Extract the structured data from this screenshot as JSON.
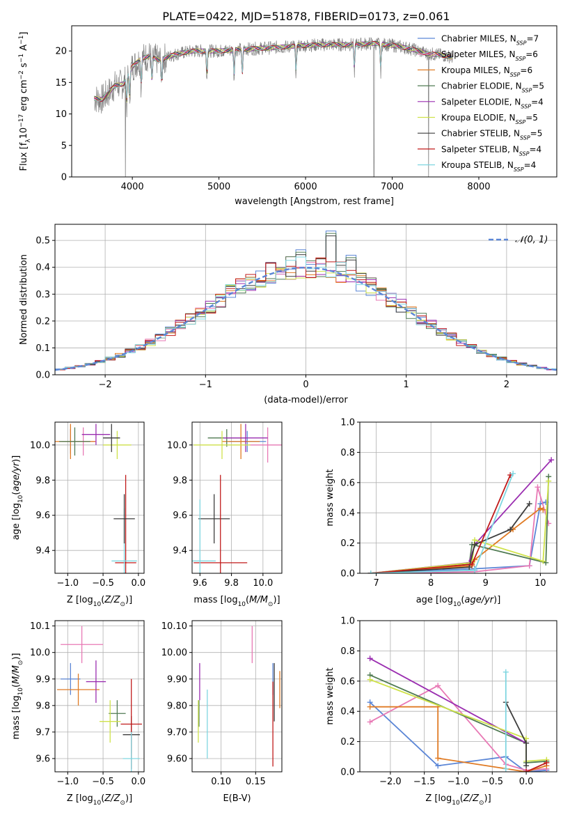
{
  "figure": {
    "title": "PLATE=0422, MJD=51878, FIBERID=0173, z=0.061"
  },
  "colors": {
    "Chabrier MILES": "#5b86d6",
    "Salpeter MILES": "#e879b5",
    "Kroupa MILES": "#e07b24",
    "Chabrier ELODIE": "#4f7a52",
    "Salpeter ELODIE": "#9a2db0",
    "Kroupa ELODIE": "#cfe24a",
    "Chabrier STELIB": "#3d3d3d",
    "Salpeter STELIB": "#c01a1a",
    "Kroupa STELIB": "#7fd6e0",
    "data": "#808080",
    "normal": "#5b86d6"
  },
  "chart_data": [
    {
      "id": "spectrum",
      "type": "line",
      "xlabel": "wavelength [Angstrom, rest frame]",
      "ylabel": "Flux [f_λ10^{-17} erg cm^{-2} s^{-1} A^{-1}]",
      "xlim": [
        3300,
        8900
      ],
      "ylim": [
        0,
        24
      ],
      "xticks": [
        4000,
        5000,
        6000,
        7000,
        8000
      ],
      "yticks": [
        0,
        5,
        10,
        15,
        20
      ],
      "grid": false,
      "legend_position": "right",
      "legend": [
        {
          "model": "Chabrier MILES",
          "nssp": "7"
        },
        {
          "model": "Salpeter MILES",
          "nssp": "6"
        },
        {
          "model": "Kroupa MILES",
          "nssp": "6"
        },
        {
          "model": "Chabrier ELODIE",
          "nssp": "5"
        },
        {
          "model": "Salpeter ELODIE",
          "nssp": "4"
        },
        {
          "model": "Kroupa ELODIE",
          "nssp": "5"
        },
        {
          "model": "Chabrier STELIB",
          "nssp": "5"
        },
        {
          "model": "Salpeter STELIB",
          "nssp": "4"
        },
        {
          "model": "Kroupa STELIB",
          "nssp": "4"
        }
      ],
      "continuum": {
        "x": [
          3550,
          3650,
          3700,
          3800,
          3900,
          4000,
          4100,
          4200,
          4300,
          4500,
          4700,
          5000,
          5300,
          5600,
          5900,
          6200,
          6500,
          6800,
          7000,
          7200,
          7400,
          7600,
          7700
        ],
        "y": [
          12.5,
          12.3,
          13.0,
          14.5,
          14.8,
          17.5,
          18.8,
          19.2,
          18.5,
          19.5,
          20.0,
          20.0,
          20.3,
          20.5,
          20.8,
          21.0,
          21.0,
          21.2,
          20.9,
          20.4,
          19.6,
          19.3,
          19.0
        ]
      },
      "absorption_lines": [
        3934,
        3969,
        4102,
        4227,
        4340,
        4861,
        5175,
        5270,
        5890,
        6563,
        6867
      ],
      "data_dropouts": [
        3920,
        6790,
        7420
      ]
    },
    {
      "id": "residuals",
      "type": "histogram",
      "xlabel": "(data-model)/error",
      "ylabel": "Normed distribution",
      "xlim": [
        -2.5,
        2.5
      ],
      "ylim": [
        0,
        0.56
      ],
      "xticks": [
        -2,
        -1,
        0,
        1,
        2
      ],
      "yticks": [
        0.0,
        0.1,
        0.2,
        0.3,
        0.4,
        0.5
      ],
      "grid": true,
      "bin_width": 0.1,
      "legend_position": "top-right",
      "legend": [
        "𝒩(0, 1)"
      ],
      "highlights": [
        {
          "x": 0.25,
          "y": 0.535
        },
        {
          "x": -0.05,
          "y": 0.465
        },
        {
          "x": 0.45,
          "y": 0.445
        }
      ]
    },
    {
      "id": "age_vs_Z",
      "type": "errorbar",
      "xlabel": "Z [log10(Z/Z⊙)]",
      "ylabel": "age [log10(age/yr)]",
      "xlim": [
        -1.18,
        0.08
      ],
      "ylim": [
        9.27,
        10.13
      ],
      "xticks": [
        -1.0,
        -0.5,
        0.0
      ],
      "yticks": [
        9.4,
        9.6,
        9.8,
        10.0
      ],
      "grid": true,
      "points": [
        {
          "model": "Chabrier MILES",
          "x": -0.96,
          "y": 10.02,
          "xerr": 0.12,
          "yerr": 0.07
        },
        {
          "model": "Salpeter MILES",
          "x": -0.78,
          "y": 10.02,
          "xerr": 0.18,
          "yerr": 0.08
        },
        {
          "model": "Kroupa MILES",
          "x": -0.96,
          "y": 10.02,
          "xerr": 0.35,
          "yerr": 0.1
        },
        {
          "model": "Chabrier ELODIE",
          "x": -0.9,
          "y": 10.02,
          "xerr": 0.22,
          "yerr": 0.08
        },
        {
          "model": "Salpeter ELODIE",
          "x": -0.6,
          "y": 10.06,
          "xerr": 0.2,
          "yerr": 0.06
        },
        {
          "model": "Kroupa ELODIE",
          "x": -0.3,
          "y": 10.0,
          "xerr": 0.2,
          "yerr": 0.08
        },
        {
          "model": "Chabrier STELIB",
          "x": -0.38,
          "y": 10.04,
          "xerr": 0.12,
          "yerr": 0.08
        },
        {
          "model": "Salpeter STELIB",
          "x": -0.18,
          "y": 9.33,
          "xerr": 0.15,
          "yerr": 0.5
        },
        {
          "model": "Kroupa STELIB",
          "x": -0.2,
          "y": 9.34,
          "xerr": 0.18,
          "yerr": 0.3
        },
        {
          "model": "Chabrier STELIB",
          "x": -0.2,
          "y": 9.58,
          "xerr": 0.15,
          "yerr": 0.14
        }
      ]
    },
    {
      "id": "age_vs_mass",
      "type": "errorbar",
      "xlabel": "mass [log10(M/M⊙)]",
      "ylabel": "",
      "xlim": [
        9.55,
        10.12
      ],
      "ylim": [
        9.27,
        10.13
      ],
      "xticks": [
        9.6,
        9.8,
        10.0
      ],
      "yticks": [
        9.4,
        9.6,
        9.8,
        10.0
      ],
      "grid": true,
      "points": [
        {
          "model": "Chabrier MILES",
          "x": 9.9,
          "y": 10.02,
          "xerr": 0.12,
          "yerr": 0.06
        },
        {
          "model": "Salpeter MILES",
          "x": 10.03,
          "y": 10.0,
          "xerr": 0.12,
          "yerr": 0.1
        },
        {
          "model": "Kroupa MILES",
          "x": 9.86,
          "y": 10.02,
          "xerr": 0.12,
          "yerr": 0.1
        },
        {
          "model": "Chabrier ELODIE",
          "x": 9.77,
          "y": 10.04,
          "xerr": 0.12,
          "yerr": 0.05
        },
        {
          "model": "Salpeter ELODIE",
          "x": 9.89,
          "y": 10.04,
          "xerr": 0.14,
          "yerr": 0.08
        },
        {
          "model": "Kroupa ELODIE",
          "x": 9.74,
          "y": 10.0,
          "xerr": 0.18,
          "yerr": 0.08
        },
        {
          "model": "Chabrier STELIB",
          "x": 9.69,
          "y": 9.58,
          "xerr": 0.1,
          "yerr": 0.14
        },
        {
          "model": "Salpeter STELIB",
          "x": 9.73,
          "y": 9.33,
          "xerr": 0.17,
          "yerr": 0.5
        },
        {
          "model": "Kroupa STELIB",
          "x": 9.6,
          "y": 9.34,
          "xerr": 0.1,
          "yerr": 0.35
        }
      ]
    },
    {
      "id": "weight_vs_age",
      "type": "line",
      "xlabel": "age [log10(age/yr)]",
      "ylabel": "mass weight",
      "xlim": [
        6.7,
        10.3
      ],
      "ylim": [
        0,
        1.0
      ],
      "xticks": [
        7,
        8,
        9,
        10
      ],
      "yticks": [
        0.0,
        0.2,
        0.4,
        0.6,
        0.8,
        1.0
      ],
      "grid": true,
      "series": [
        {
          "model": "Chabrier MILES",
          "x": [
            6.9,
            8.8,
            9.8,
            10.0,
            10.1
          ],
          "y": [
            0.0,
            0.03,
            0.05,
            0.46,
            0.47
          ]
        },
        {
          "model": "Salpeter MILES",
          "x": [
            6.9,
            8.8,
            9.8,
            9.95,
            10.15
          ],
          "y": [
            0.0,
            0.01,
            0.05,
            0.57,
            0.33
          ]
        },
        {
          "model": "Kroupa MILES",
          "x": [
            6.9,
            8.75,
            8.8,
            9.5,
            10.0,
            10.05
          ],
          "y": [
            0.0,
            0.05,
            0.09,
            0.29,
            0.43,
            0.42
          ]
        },
        {
          "model": "Chabrier ELODIE",
          "x": [
            6.9,
            8.7,
            8.75,
            10.1,
            10.15
          ],
          "y": [
            0.0,
            0.06,
            0.19,
            0.07,
            0.64
          ]
        },
        {
          "model": "Salpeter ELODIE",
          "x": [
            6.9,
            8.7,
            8.8,
            10.2
          ],
          "y": [
            0.0,
            0.07,
            0.19,
            0.75
          ]
        },
        {
          "model": "Kroupa ELODIE",
          "x": [
            6.9,
            8.75,
            8.8,
            10.05,
            10.15
          ],
          "y": [
            0.0,
            0.07,
            0.22,
            0.08,
            0.61
          ]
        },
        {
          "model": "Chabrier STELIB",
          "x": [
            6.9,
            8.7,
            8.8,
            9.45,
            9.8
          ],
          "y": [
            0.0,
            0.04,
            0.19,
            0.29,
            0.46
          ]
        },
        {
          "model": "Salpeter STELIB",
          "x": [
            6.9,
            8.75,
            9.45
          ],
          "y": [
            0.0,
            0.06,
            0.65
          ]
        },
        {
          "model": "Kroupa STELIB",
          "x": [
            6.9,
            8.8,
            9.5
          ],
          "y": [
            0.0,
            0.02,
            0.66
          ]
        }
      ]
    },
    {
      "id": "mass_vs_Z",
      "type": "errorbar",
      "xlabel": "Z [log10(Z/Z⊙)]",
      "ylabel": "mass [log10(M/M⊙)]",
      "xlim": [
        -1.18,
        0.08
      ],
      "ylim": [
        9.55,
        10.12
      ],
      "xticks": [
        -1.0,
        -0.5,
        0.0
      ],
      "yticks": [
        9.6,
        9.7,
        9.8,
        9.9,
        10.0,
        10.1
      ],
      "grid": true,
      "points": [
        {
          "model": "Chabrier MILES",
          "x": -0.96,
          "y": 9.9,
          "xerr": 0.14,
          "yerr": 0.06
        },
        {
          "model": "Salpeter MILES",
          "x": -0.8,
          "y": 10.03,
          "xerr": 0.3,
          "yerr": 0.07
        },
        {
          "model": "Kroupa MILES",
          "x": -0.85,
          "y": 9.86,
          "xerr": 0.3,
          "yerr": 0.06
        },
        {
          "model": "Chabrier ELODIE",
          "x": -0.3,
          "y": 9.77,
          "xerr": 0.12,
          "yerr": 0.05
        },
        {
          "model": "Salpeter ELODIE",
          "x": -0.6,
          "y": 9.89,
          "xerr": 0.14,
          "yerr": 0.08
        },
        {
          "model": "Kroupa ELODIE",
          "x": -0.4,
          "y": 9.74,
          "xerr": 0.15,
          "yerr": 0.08
        },
        {
          "model": "Chabrier STELIB",
          "x": -0.1,
          "y": 9.69,
          "xerr": 0.12,
          "yerr": 0.07
        },
        {
          "model": "Salpeter STELIB",
          "x": -0.1,
          "y": 9.73,
          "xerr": 0.15,
          "yerr": 0.17
        },
        {
          "model": "Kroupa STELIB",
          "x": -0.1,
          "y": 9.6,
          "xerr": 0.12,
          "yerr": 0.1
        }
      ]
    },
    {
      "id": "mass_vs_ebv",
      "type": "errorbar",
      "xlabel": "E(B-V)",
      "ylabel": "",
      "xlim": [
        0.058,
        0.188
      ],
      "ylim": [
        9.55,
        10.12
      ],
      "xticks": [
        0.1,
        0.15
      ],
      "yticks": [
        9.6,
        9.7,
        9.8,
        9.9,
        10.0,
        10.1
      ],
      "grid": true,
      "points": [
        {
          "model": "Chabrier MILES",
          "x": 0.175,
          "y": 9.9,
          "xerr": 0.0,
          "yerr": 0.06
        },
        {
          "model": "Salpeter MILES",
          "x": 0.145,
          "y": 10.03,
          "xerr": 0.0,
          "yerr": 0.07
        },
        {
          "model": "Kroupa MILES",
          "x": 0.185,
          "y": 9.86,
          "xerr": 0.0,
          "yerr": 0.07
        },
        {
          "model": "Chabrier ELODIE",
          "x": 0.068,
          "y": 9.77,
          "xerr": 0.0,
          "yerr": 0.05
        },
        {
          "model": "Salpeter ELODIE",
          "x": 0.069,
          "y": 9.89,
          "xerr": 0.0,
          "yerr": 0.07
        },
        {
          "model": "Kroupa ELODIE",
          "x": 0.067,
          "y": 9.74,
          "xerr": 0.0,
          "yerr": 0.08
        },
        {
          "model": "Chabrier STELIB",
          "x": 0.177,
          "y": 9.85,
          "xerr": 0.0,
          "yerr": 0.11
        },
        {
          "model": "Salpeter STELIB",
          "x": 0.175,
          "y": 9.73,
          "xerr": 0.0,
          "yerr": 0.16
        },
        {
          "model": "Kroupa STELIB",
          "x": 0.08,
          "y": 9.73,
          "xerr": 0.0,
          "yerr": 0.13
        }
      ]
    },
    {
      "id": "weight_vs_Z",
      "type": "line",
      "xlabel": "Z [log10(Z/Z⊙)]",
      "ylabel": "mass weight",
      "xlim": [
        -2.45,
        0.45
      ],
      "ylim": [
        0,
        1.0
      ],
      "xticks": [
        -2.0,
        -1.5,
        -1.0,
        -0.5,
        0.0
      ],
      "yticks": [
        0.0,
        0.2,
        0.4,
        0.6,
        0.8,
        1.0
      ],
      "grid": true,
      "series": [
        {
          "model": "Chabrier MILES",
          "x": [
            -2.3,
            -1.3,
            -0.3,
            0.0,
            0.3
          ],
          "y": [
            0.46,
            0.04,
            0.1,
            0.0,
            0.01
          ]
        },
        {
          "model": "Salpeter MILES",
          "x": [
            -2.3,
            -1.3,
            -0.3,
            0.0,
            0.3
          ],
          "y": [
            0.33,
            0.57,
            0.05,
            0.01,
            0.02
          ]
        },
        {
          "model": "Kroupa MILES",
          "x": [
            -2.3,
            -1.3,
            -1.3,
            0.0,
            0.3
          ],
          "y": [
            0.43,
            0.43,
            0.09,
            0.0,
            0.04
          ]
        },
        {
          "model": "Chabrier ELODIE",
          "x": [
            -2.3,
            0.0,
            0.0,
            0.3
          ],
          "y": [
            0.64,
            0.19,
            0.06,
            0.07
          ]
        },
        {
          "model": "Salpeter ELODIE",
          "x": [
            -2.3,
            0.0
          ],
          "y": [
            0.75,
            0.19
          ]
        },
        {
          "model": "Kroupa ELODIE",
          "x": [
            -2.3,
            0.0,
            0.0,
            0.3
          ],
          "y": [
            0.61,
            0.22,
            0.07,
            0.08
          ]
        },
        {
          "model": "Chabrier STELIB",
          "x": [
            -0.3,
            0.0,
            0.0
          ],
          "y": [
            0.46,
            0.19,
            0.04
          ]
        },
        {
          "model": "Salpeter STELIB",
          "x": [
            0.0,
            0.3
          ],
          "y": [
            0.0,
            0.06
          ]
        },
        {
          "model": "Kroupa STELIB",
          "x": [
            -0.3,
            -0.3
          ],
          "y": [
            0.02,
            0.66
          ]
        }
      ]
    }
  ]
}
